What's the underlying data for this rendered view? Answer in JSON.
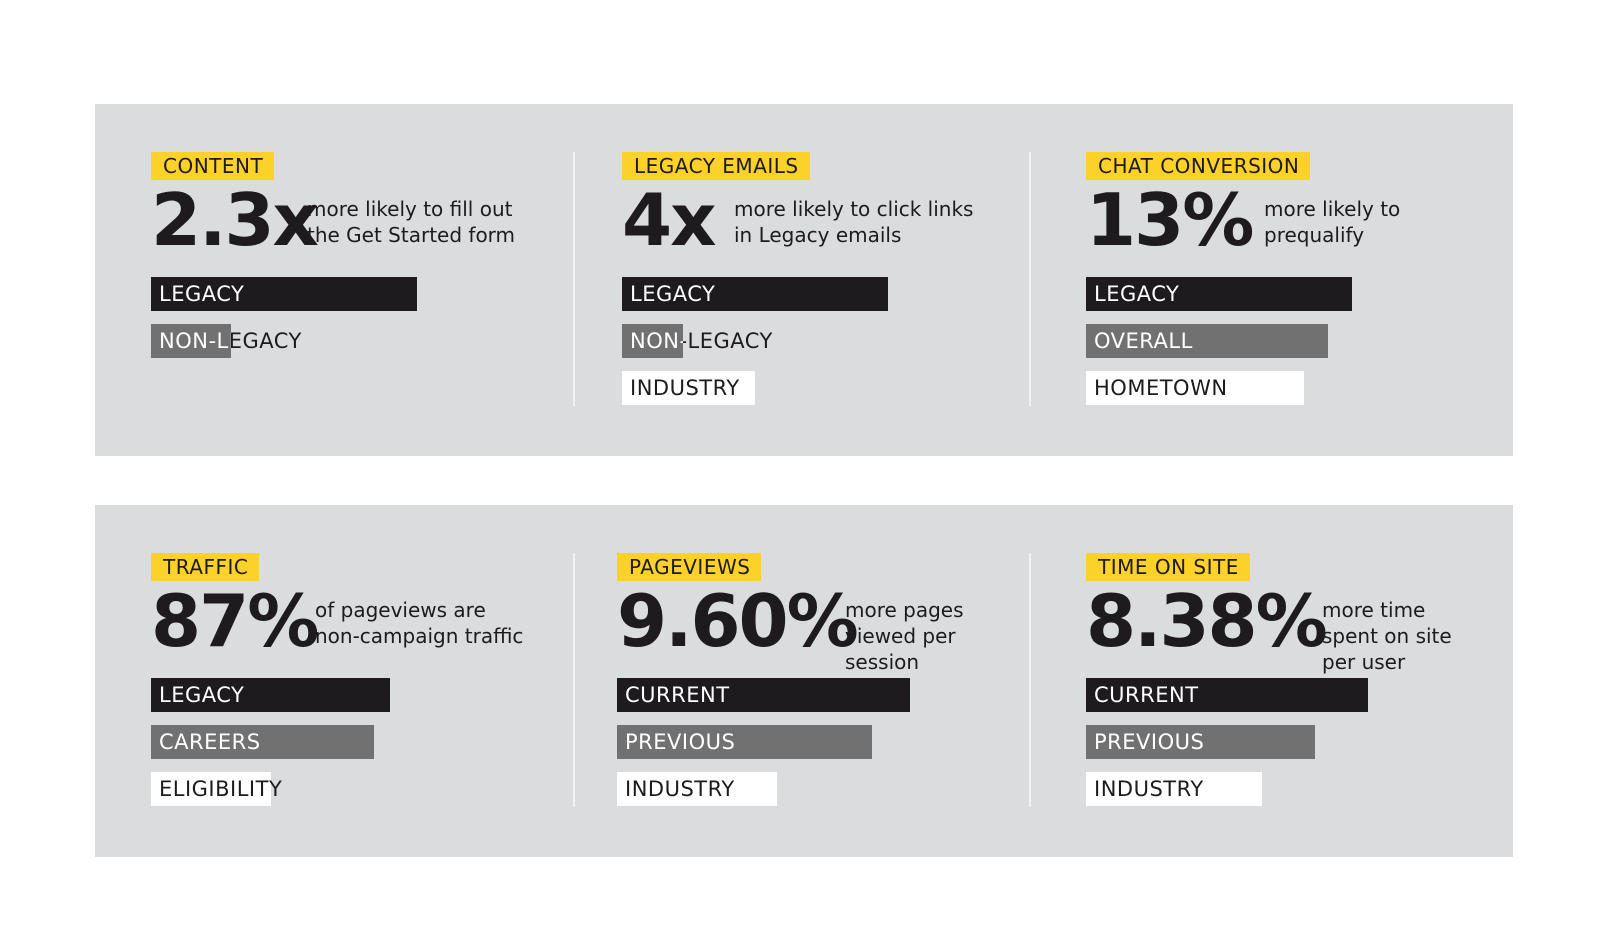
{
  "colors": {
    "panel_bg": "#dbdcdd",
    "tag_bg": "#fcd12a",
    "dark": "#1d1b1d",
    "mid": "#717172",
    "light": "#ffffff"
  },
  "chart_data": [
    {
      "type": "bar",
      "category": "CONTENT",
      "stat": "2.3x",
      "description": [
        "more likely to fill out",
        "the Get Started form"
      ],
      "bars": [
        {
          "label": "LEGACY",
          "value": 1.0,
          "color": "#1d1b1d"
        },
        {
          "label": "NON-LEGACY",
          "value": 0.3,
          "color": "#717172"
        }
      ]
    },
    {
      "type": "bar",
      "category": "LEGACY EMAILS",
      "stat": "4x",
      "description": [
        "more likely to click links",
        "in Legacy emails"
      ],
      "bars": [
        {
          "label": "LEGACY",
          "value": 1.0,
          "color": "#1d1b1d"
        },
        {
          "label": "NON-LEGACY",
          "value": 0.23,
          "color": "#717172"
        },
        {
          "label": "INDUSTRY",
          "value": 0.5,
          "color": "#ffffff"
        }
      ]
    },
    {
      "type": "bar",
      "category": "CHAT CONVERSION",
      "stat": "13%",
      "description": [
        "more likely to",
        "prequalify"
      ],
      "bars": [
        {
          "label": "LEGACY",
          "value": 1.0,
          "color": "#1d1b1d"
        },
        {
          "label": "OVERALL",
          "value": 0.91,
          "color": "#717172"
        },
        {
          "label": "HOMETOWN",
          "value": 0.82,
          "color": "#ffffff"
        }
      ]
    },
    {
      "type": "bar",
      "category": "TRAFFIC",
      "stat": "87%",
      "description": [
        "of pageviews are",
        "non-campaign traffic"
      ],
      "bars": [
        {
          "label": "LEGACY",
          "value": 0.9,
          "color": "#1d1b1d"
        },
        {
          "label": "CAREERS",
          "value": 0.84,
          "color": "#717172"
        },
        {
          "label": "ELIGIBILITY",
          "value": 0.45,
          "color": "#ffffff"
        }
      ]
    },
    {
      "type": "bar",
      "category": "PAGEVIEWS",
      "stat": "9.60%",
      "description": [
        "more pages",
        "viewed per",
        "session"
      ],
      "bars": [
        {
          "label": "CURRENT",
          "value": 1.1,
          "color": "#1d1b1d"
        },
        {
          "label": "PREVIOUS",
          "value": 0.96,
          "color": "#717172"
        },
        {
          "label": "INDUSTRY",
          "value": 0.6,
          "color": "#ffffff"
        }
      ]
    },
    {
      "type": "bar",
      "category": "TIME ON SITE",
      "stat": "8.38%",
      "description": [
        "more time",
        "spent on site",
        "per user"
      ],
      "bars": [
        {
          "label": "CURRENT",
          "value": 1.06,
          "color": "#1d1b1d"
        },
        {
          "label": "PREVIOUS",
          "value": 0.86,
          "color": "#717172"
        },
        {
          "label": "INDUSTRY",
          "value": 0.66,
          "color": "#ffffff"
        }
      ]
    }
  ]
}
